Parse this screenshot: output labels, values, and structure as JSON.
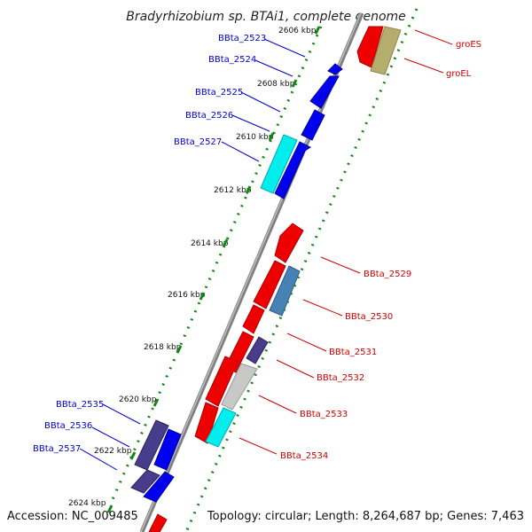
{
  "title": "Bradyrhizobium sp. BTAi1, complete genome",
  "accession": "Accession: NC_009485",
  "topology": "Topology: circular; Length: 8,264,687 bp; Genes: 7,463",
  "ticks": [
    "2606 kbp",
    "2608 kbp",
    "2610 kbp",
    "2612 kbp",
    "2614 kbp",
    "2616 kbp",
    "2618 kbp",
    "2620 kbp",
    "2622 kbp",
    "2624 kbp"
  ],
  "left_genes": [
    "BBta_2523",
    "BBta_2524",
    "BBta_2525",
    "BBta_2526",
    "BBta_2527",
    "BBta_2535",
    "BBta_2536",
    "BBta_2537"
  ],
  "right_genes": [
    "groES",
    "groEL",
    "BBta_2529",
    "BBta_2530",
    "BBta_2531",
    "BBta_2532",
    "BBta_2533",
    "BBta_2534"
  ],
  "colors": {
    "left_label": "#0000cc",
    "right_label": "#cc0000",
    "forward_gene": "#0000ee",
    "reverse_gene": "#ee0000",
    "cyan_gene": "#00eeee",
    "olive_gene": "#b5ad6b",
    "steel_gene": "#4682b4",
    "slate_gene": "#483d8b",
    "grey_gene": "#c8c8c8",
    "backbone": "#808080",
    "dot_track": "#118811"
  }
}
